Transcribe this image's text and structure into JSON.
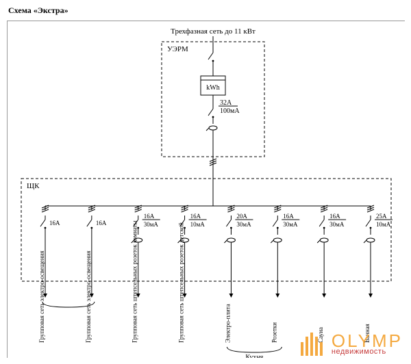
{
  "title": "Схема «Экстра»",
  "diagram": {
    "type": "electrical-single-line",
    "source_label": "Трехфазная сеть до 11 кВт",
    "panel_top": {
      "label": "УЭРМ",
      "meter": {
        "text": "kWh",
        "box_color": "#000",
        "bg": "#fff"
      },
      "main_breaker": {
        "rating": "32A",
        "leakage": "100мА"
      },
      "border_style": "dashed",
      "border_color": "#000"
    },
    "panel_bottom": {
      "label": "ЩК",
      "border_style": "dashed",
      "border_color": "#000",
      "circuits": [
        {
          "rating": "16A",
          "leakage": null,
          "label": "Групповая сеть электро-освещения",
          "bracket_group": 0
        },
        {
          "rating": "16A",
          "leakage": null,
          "label": "Групповая сеть электро-освещения",
          "bracket_group": 0
        },
        {
          "rating": "16A",
          "leakage": "30мА",
          "label": "Групповая сеть штепсельных розеток комнаты",
          "bracket_group": null
        },
        {
          "rating": "16A",
          "leakage": "10мА",
          "label": "Групповая сеть штепсельных розеток детской",
          "bracket_group": null
        },
        {
          "rating": "20A",
          "leakage": "30мА",
          "label": "Электро-плита",
          "bracket_group": 1
        },
        {
          "rating": "16A",
          "leakage": "30мА",
          "label": "Розетки",
          "bracket_group": 1
        },
        {
          "rating": "16A",
          "leakage": "30мА",
          "label": "Сауна",
          "bracket_group": null
        },
        {
          "rating": "25A",
          "leakage": "10мА",
          "label": "Ванная",
          "bracket_group": null
        }
      ],
      "bracket_labels": [
        "",
        "Кухня"
      ]
    },
    "stroke_color": "#000",
    "stroke_width": 1,
    "font_size_label": 10,
    "font_size_small": 9,
    "background": "#ffffff"
  },
  "watermark": {
    "text_big": "OLYMP",
    "text_small": "недвижимость",
    "color_main": "#f4a940",
    "color_sub": "#c63a3a"
  }
}
